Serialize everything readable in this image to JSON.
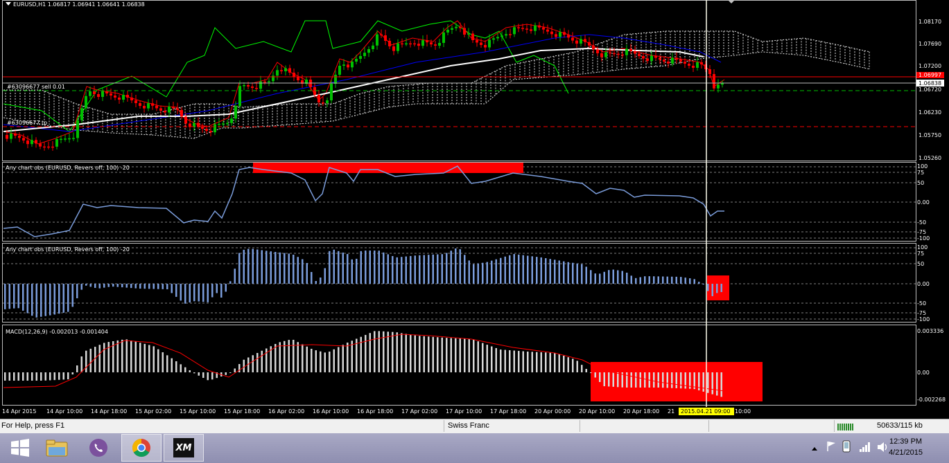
{
  "main_chart": {
    "title": "EURUSD,H1  1.06817 1.06941 1.06641 1.06838",
    "order_label_1": "#63096677 sell 0.01",
    "order_label_2": "#63096677 tp",
    "price_ticks": [
      "1.08170",
      "1.07690",
      "1.07200",
      "1.06720",
      "1.06230",
      "1.05750",
      "1.05260"
    ],
    "price_current": "1.06838",
    "price_red": "1.06997",
    "colors": {
      "bull": "#00c000",
      "bear": "#ff0000",
      "ma_white": "#ffffff",
      "kijun": "#0000ff",
      "tenkan": "#ff0000",
      "chikou": "#00ff00"
    }
  },
  "indicator1": {
    "title": "Any chart obs (EURUSD, Revers off, 100) -20",
    "ticks": [
      "100",
      "75",
      "50",
      "0.00",
      "-50",
      "-75",
      "-100"
    ],
    "color": "#7b9ddb"
  },
  "indicator2": {
    "title": "Any chart obs (EURUSD, Revers off, 100) -20",
    "ticks": [
      "100",
      "75",
      "50",
      "0.00",
      "-50",
      "-75",
      "-100"
    ],
    "color": "#7b9ddb"
  },
  "macd": {
    "title": "MACD(12,26,9) -0.002013 -0.001404",
    "ticks": [
      "0.003336",
      "0.00",
      "-0.002268"
    ]
  },
  "time_axis": {
    "labels": [
      "14 Apr 2015",
      "14 Apr 10:00",
      "14 Apr 18:00",
      "15 Apr 02:00",
      "15 Apr 10:00",
      "15 Apr 18:00",
      "16 Apr 02:00",
      "16 Apr 10:00",
      "16 Apr 18:00",
      "17 Apr 02:00",
      "17 Apr 10:00",
      "17 Apr 18:00",
      "20 Apr 00:00",
      "20 Apr 10:00",
      "20 Apr 18:00",
      "21"
    ],
    "cursor_label": "2015.04.21 09:00",
    "cursor_tail": "10:00"
  },
  "statusbar": {
    "help": "For Help, press F1",
    "profile": "Swiss Franc",
    "traffic": "50633/115 kb"
  },
  "taskbar": {
    "apps": [
      {
        "name": "start",
        "icon": "windows-logo-icon"
      },
      {
        "name": "file-explorer",
        "icon": "folder-icon"
      },
      {
        "name": "viber",
        "icon": "viber-icon"
      },
      {
        "name": "chrome",
        "icon": "chrome-icon"
      },
      {
        "name": "xm-terminal",
        "icon": "xm-icon",
        "label": "XM"
      }
    ],
    "time": "12:39 PM",
    "date": "4/21/2015"
  }
}
